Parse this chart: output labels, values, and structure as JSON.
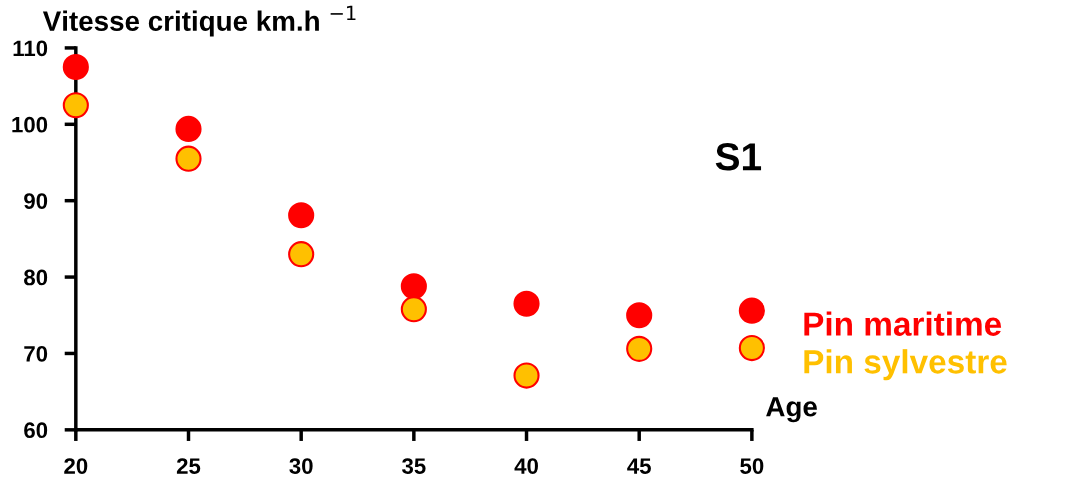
{
  "chart_data": {
    "type": "scatter",
    "ylabel": "Vitesse critique km.h $^{−1}$",
    "xlabel": "Age",
    "annotations": [
      "S1"
    ],
    "x": [
      20,
      25,
      30,
      35,
      40,
      45,
      50
    ],
    "series": [
      {
        "name": "Pin maritime",
        "color": "#ff0000",
        "values": [
          107.5,
          99.4,
          88.1,
          78.8,
          76.5,
          75,
          75.6
        ]
      },
      {
        "name": "Pin sylvestre",
        "color": "#ffc000",
        "values": [
          102.5,
          95.5,
          83,
          75.8,
          67.1,
          70.6,
          70.7
        ]
      }
    ],
    "xlim": [
      20,
      50
    ],
    "xticks": [
      20,
      25,
      30,
      35,
      40,
      45,
      50
    ],
    "ylim": [
      60,
      110
    ],
    "yticks": [
      60,
      70,
      80,
      90,
      100,
      110
    ],
    "marker": "circle",
    "legend": "right",
    "grid": false
  }
}
